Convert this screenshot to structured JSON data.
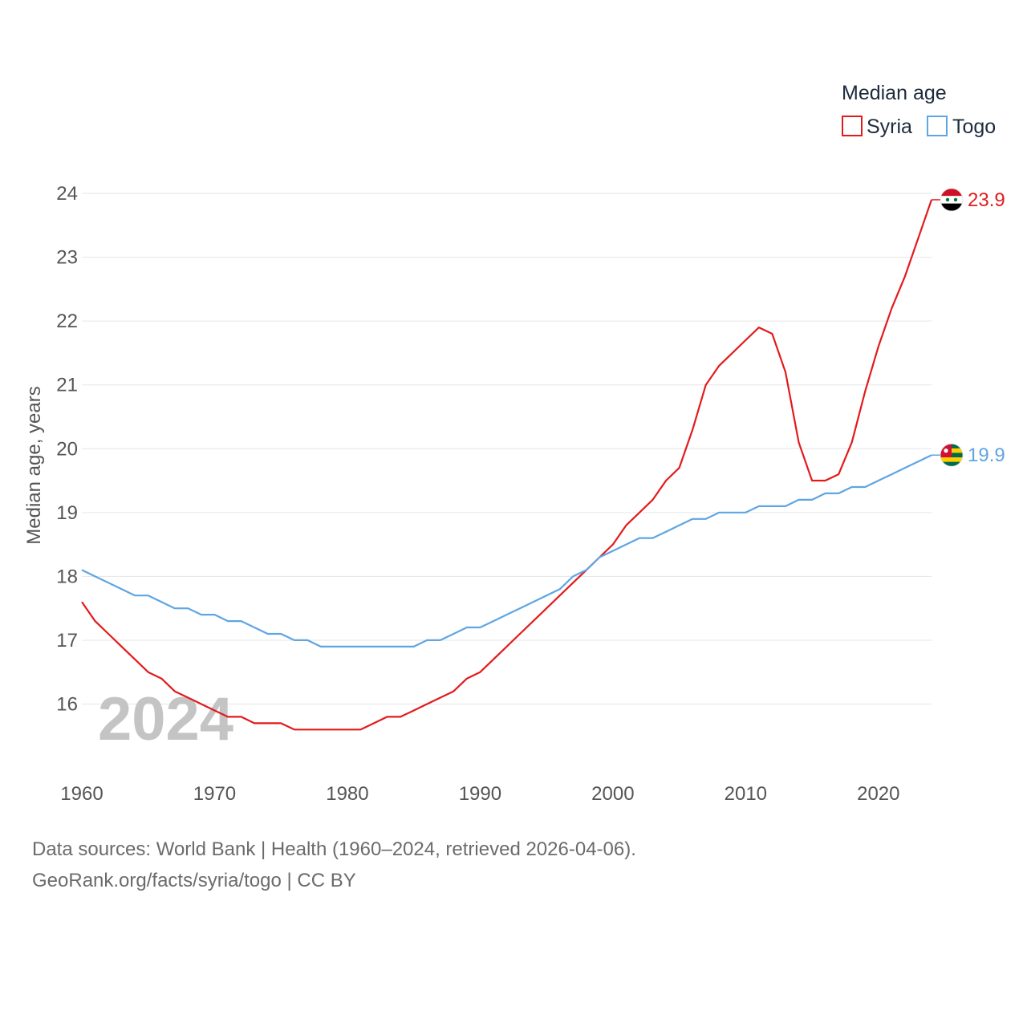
{
  "chart_data": {
    "type": "line",
    "title": "",
    "legend_title": "Median age",
    "xlabel": "",
    "ylabel": "Median age, years",
    "year_label": "2024",
    "xlim": [
      1960,
      2024
    ],
    "ylim": [
      15,
      24.5
    ],
    "x_ticks": [
      "1960",
      "1970",
      "1980",
      "1990",
      "2000",
      "2010",
      "2020"
    ],
    "y_ticks": [
      "16",
      "17",
      "18",
      "19",
      "20",
      "21",
      "22",
      "23",
      "24"
    ],
    "grid": true,
    "legend_position": "top-right",
    "x": [
      1960,
      1961,
      1962,
      1963,
      1964,
      1965,
      1966,
      1967,
      1968,
      1969,
      1970,
      1971,
      1972,
      1973,
      1974,
      1975,
      1976,
      1977,
      1978,
      1979,
      1980,
      1981,
      1982,
      1983,
      1984,
      1985,
      1986,
      1987,
      1988,
      1989,
      1990,
      1991,
      1992,
      1993,
      1994,
      1995,
      1996,
      1997,
      1998,
      1999,
      2000,
      2001,
      2002,
      2003,
      2004,
      2005,
      2006,
      2007,
      2008,
      2009,
      2010,
      2011,
      2012,
      2013,
      2014,
      2015,
      2016,
      2017,
      2018,
      2019,
      2020,
      2021,
      2022,
      2023,
      2024
    ],
    "series": [
      {
        "name": "Syria",
        "color": "#e31a1c",
        "end_label": "23.9",
        "flag": "syria-flag-icon",
        "values": [
          17.6,
          17.3,
          17.1,
          16.9,
          16.7,
          16.5,
          16.4,
          16.2,
          16.1,
          16.0,
          15.9,
          15.8,
          15.8,
          15.7,
          15.7,
          15.7,
          15.6,
          15.6,
          15.6,
          15.6,
          15.6,
          15.6,
          15.7,
          15.8,
          15.8,
          15.9,
          16.0,
          16.1,
          16.2,
          16.4,
          16.5,
          16.7,
          16.9,
          17.1,
          17.3,
          17.5,
          17.7,
          17.9,
          18.1,
          18.3,
          18.5,
          18.8,
          19.0,
          19.2,
          19.5,
          19.7,
          20.3,
          21.0,
          21.3,
          21.5,
          21.7,
          21.9,
          21.8,
          21.2,
          20.1,
          19.5,
          19.5,
          19.6,
          20.1,
          20.9,
          21.6,
          22.2,
          22.7,
          23.3,
          23.9
        ]
      },
      {
        "name": "Togo",
        "color": "#5fa5e4",
        "end_label": "19.9",
        "flag": "togo-flag-icon",
        "values": [
          18.1,
          18.0,
          17.9,
          17.8,
          17.7,
          17.7,
          17.6,
          17.5,
          17.5,
          17.4,
          17.4,
          17.3,
          17.3,
          17.2,
          17.1,
          17.1,
          17.0,
          17.0,
          16.9,
          16.9,
          16.9,
          16.9,
          16.9,
          16.9,
          16.9,
          16.9,
          17.0,
          17.0,
          17.1,
          17.2,
          17.2,
          17.3,
          17.4,
          17.5,
          17.6,
          17.7,
          17.8,
          18.0,
          18.1,
          18.3,
          18.4,
          18.5,
          18.6,
          18.6,
          18.7,
          18.8,
          18.9,
          18.9,
          19.0,
          19.0,
          19.0,
          19.1,
          19.1,
          19.1,
          19.2,
          19.2,
          19.3,
          19.3,
          19.4,
          19.4,
          19.5,
          19.6,
          19.7,
          19.8,
          19.9
        ]
      }
    ]
  },
  "footer": {
    "source_line": "Data sources: World Bank | Health (1960–2024, retrieved 2026-04-06).",
    "credit_line": "GeoRank.org/facts/syria/togo | CC BY"
  }
}
